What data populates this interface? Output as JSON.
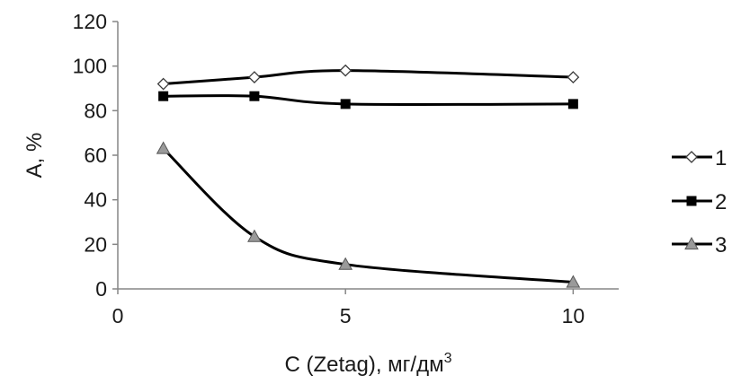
{
  "chart_data": {
    "type": "line",
    "title": "",
    "xlabel": "C (Zetag), мг/дм",
    "xlabel_sup": "3",
    "ylabel": "A, %",
    "xlim": [
      0,
      11
    ],
    "ylim": [
      0,
      120
    ],
    "x_ticks": [
      0,
      5,
      10
    ],
    "y_ticks": [
      0,
      20,
      40,
      60,
      80,
      100,
      120
    ],
    "grid": false,
    "legend_position": "right",
    "smooth": true,
    "series": [
      {
        "name": "1",
        "marker": "diamond-open",
        "x": [
          1,
          3,
          5,
          10
        ],
        "values": [
          92,
          95,
          98,
          95
        ]
      },
      {
        "name": "2",
        "marker": "square-filled",
        "x": [
          1,
          3,
          5,
          10
        ],
        "values": [
          86.5,
          86.5,
          83,
          83
        ]
      },
      {
        "name": "3",
        "marker": "triangle-filled",
        "x": [
          1,
          3,
          5,
          10
        ],
        "values": [
          63,
          23.5,
          11,
          3
        ]
      }
    ],
    "colors": {
      "line": "#000000",
      "triangle_fill": "#9a9a9a",
      "axis": "#868686"
    }
  }
}
